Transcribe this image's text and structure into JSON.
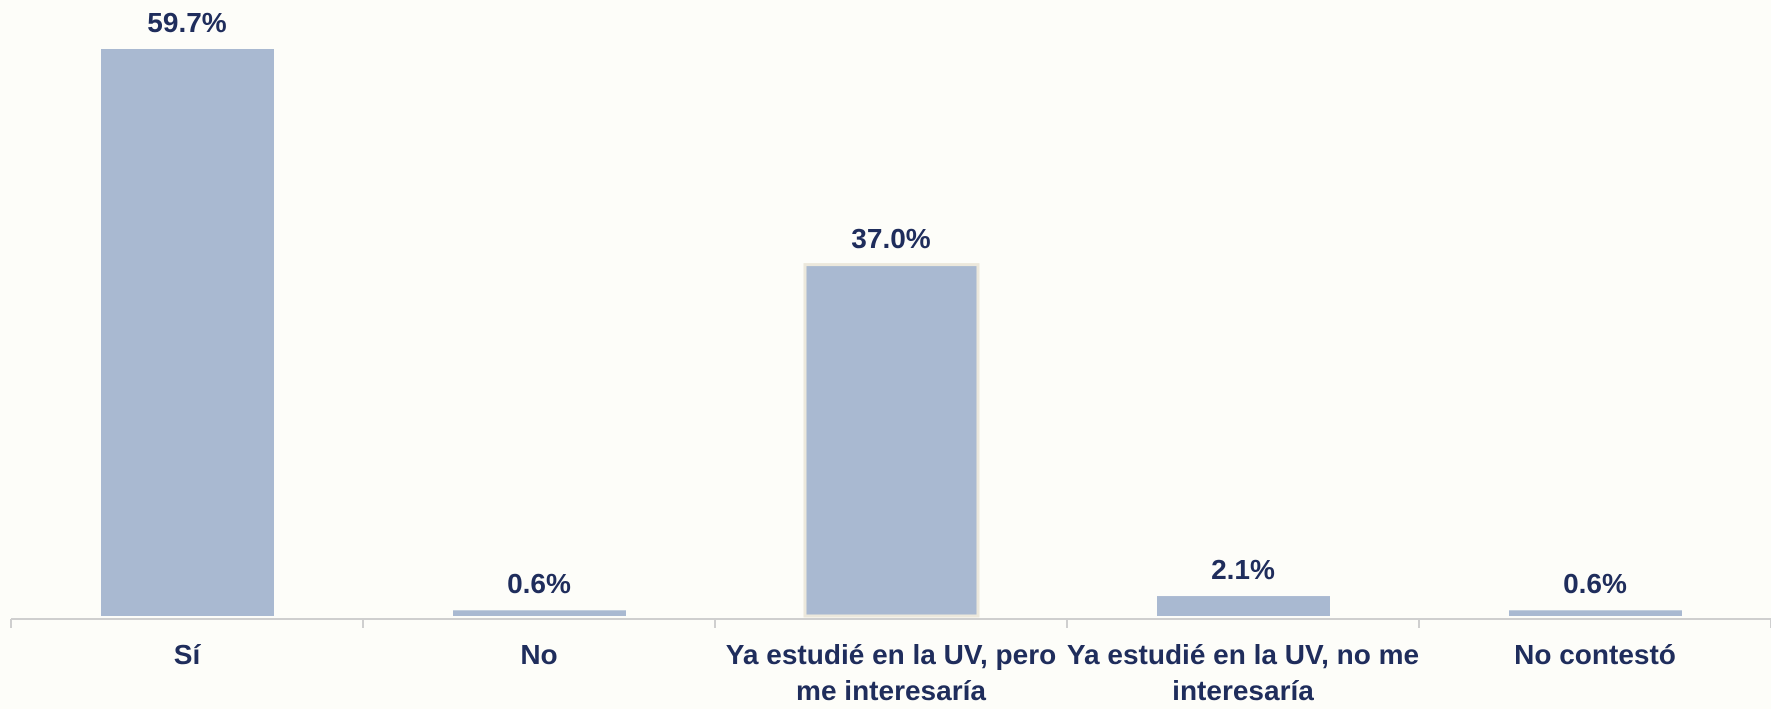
{
  "chart_data": {
    "type": "bar",
    "categories": [
      "Sí",
      "No",
      "Ya estudié en la UV, pero me interesaría",
      "Ya estudié en la UV, no me interesaría",
      "No contestó"
    ],
    "values": [
      59.7,
      0.6,
      37.0,
      2.1,
      0.6
    ],
    "value_labels": [
      "59.7%",
      "0.6%",
      "37.0%",
      "2.1%",
      "0.6%"
    ],
    "color": "#a9b9d1"
  }
}
